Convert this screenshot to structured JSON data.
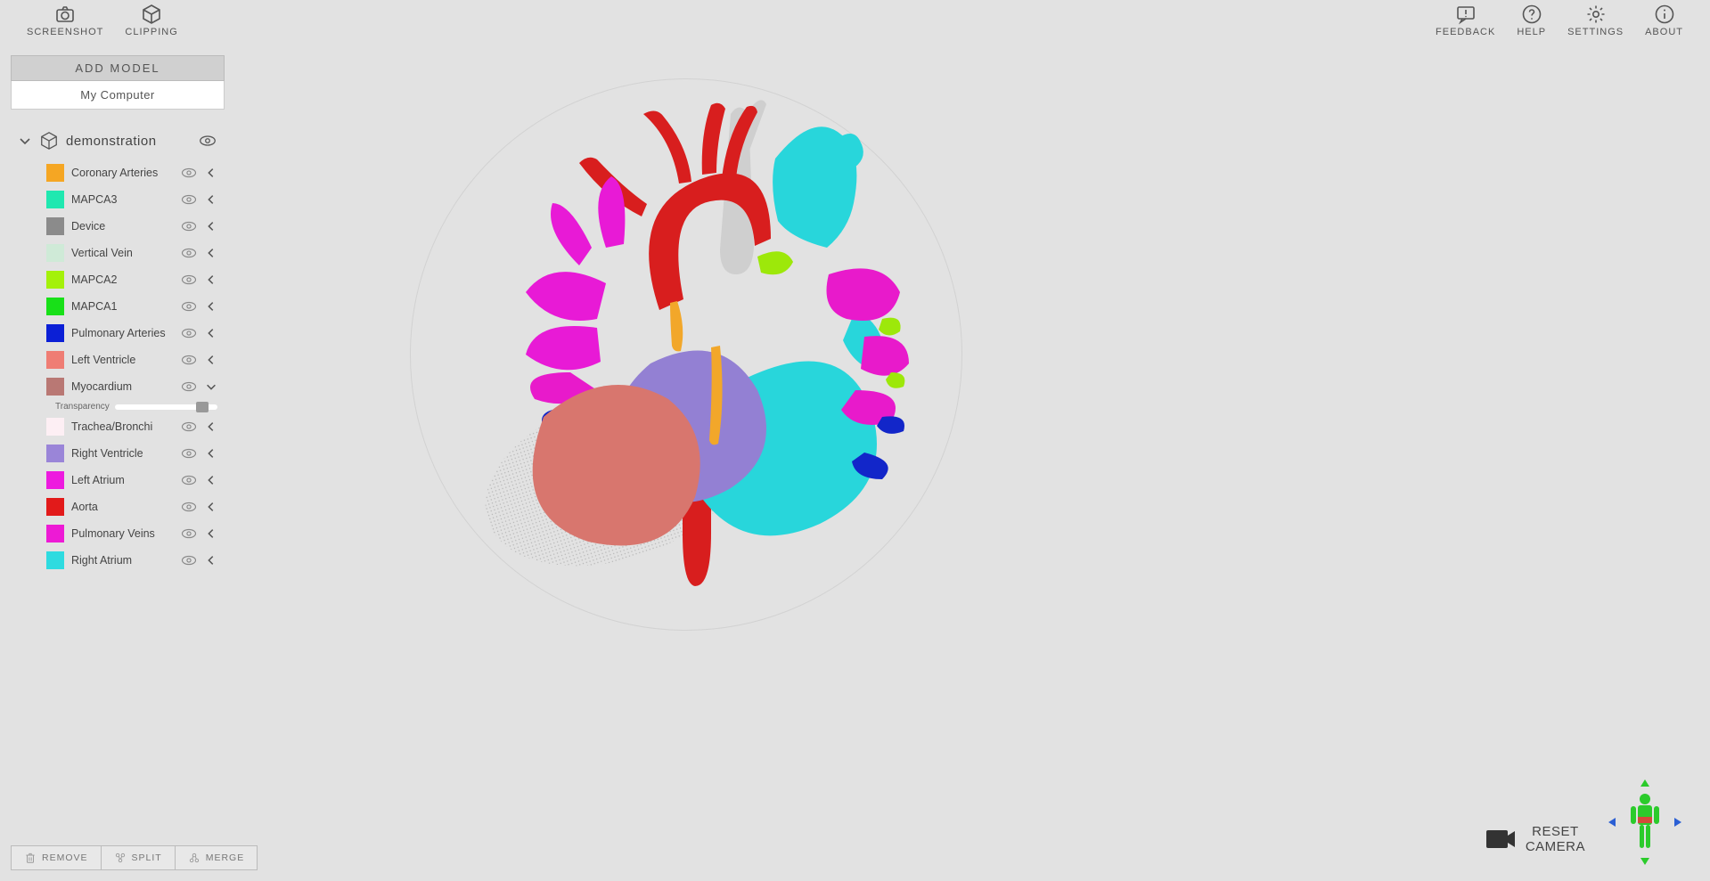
{
  "topbar": {
    "left": [
      {
        "name": "screenshot",
        "label": "SCREENSHOT",
        "icon": "camera"
      },
      {
        "name": "clipping",
        "label": "CLIPPING",
        "icon": "cube"
      }
    ],
    "right": [
      {
        "name": "feedback",
        "label": "FEEDBACK",
        "icon": "feedback"
      },
      {
        "name": "help",
        "label": "HELP",
        "icon": "help"
      },
      {
        "name": "settings",
        "label": "SETTINGS",
        "icon": "gear"
      },
      {
        "name": "about",
        "label": "ABOUT",
        "icon": "info"
      }
    ]
  },
  "sidebar": {
    "add_model_label": "ADD MODEL",
    "my_computer_label": "My Computer",
    "group_name": "demonstration",
    "transparency_label": "Transparency",
    "transparency_value": 0.92,
    "layers": [
      {
        "label": "Coronary Arteries",
        "color": "#f5a623",
        "expanded": false
      },
      {
        "label": "MAPCA3",
        "color": "#1fe8b0",
        "expanded": false
      },
      {
        "label": "Device",
        "color": "#8b8b8b",
        "expanded": false
      },
      {
        "label": "Vertical Vein",
        "color": "#cfead7",
        "expanded": false
      },
      {
        "label": "MAPCA2",
        "color": "#a4f10a",
        "expanded": false
      },
      {
        "label": "MAPCA1",
        "color": "#18e018",
        "expanded": false
      },
      {
        "label": "Pulmonary Arteries",
        "color": "#0b1fd6",
        "expanded": false
      },
      {
        "label": "Left Ventricle",
        "color": "#ef7d74",
        "expanded": false
      },
      {
        "label": "Myocardium",
        "color": "#b97874",
        "expanded": true
      },
      {
        "label": "Trachea/Bronchi",
        "color": "#fdeff4",
        "expanded": false
      },
      {
        "label": "Right Ventricle",
        "color": "#9a85d8",
        "expanded": false
      },
      {
        "label": "Left Atrium",
        "color": "#ed1adf",
        "expanded": false
      },
      {
        "label": "Aorta",
        "color": "#e21a1a",
        "expanded": false
      },
      {
        "label": "Pulmonary Veins",
        "color": "#ed1ad5",
        "expanded": false
      },
      {
        "label": "Right Atrium",
        "color": "#2edbe0",
        "expanded": false
      }
    ]
  },
  "bottombar": [
    {
      "name": "remove",
      "label": "REMOVE",
      "icon": "trash"
    },
    {
      "name": "split",
      "label": "SPLIT",
      "icon": "split"
    },
    {
      "name": "merge",
      "label": "MERGE",
      "icon": "merge"
    }
  ],
  "reset_camera": {
    "line1": "RESET",
    "line2": "CAMERA"
  },
  "orientation": {
    "body_color": "#2bcb2b",
    "belt_color": "#d44a3a",
    "arrow_up_color": "#2bcb2b",
    "arrow_side_color": "#2b5fd4"
  },
  "heart_model": {
    "background": "#e2e2e2",
    "shadow_color": "rgba(0,0,0,0.12)",
    "parts": {
      "trachea": "#cfcfcf",
      "aorta": "#d81e1e",
      "right_atrium": "#28d6db",
      "left_atrium": "#e81ad6",
      "pulm_veins": "#e81acb",
      "right_ventricle": "#9380d3",
      "left_ventricle": "#d8766e",
      "coronary": "#f2a72a",
      "mapca2": "#9de80a",
      "pulm_arteries": "#1226c9"
    }
  }
}
